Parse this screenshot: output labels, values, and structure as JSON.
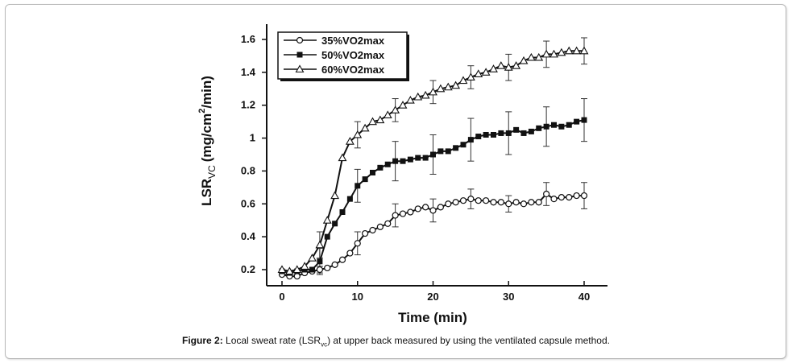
{
  "chart_data": {
    "type": "line",
    "title": "",
    "xlabel": "Time (min)",
    "ylabel_main": "LSR",
    "ylabel_sub": "VC",
    "ylabel_unit_pre": "(mg/cm",
    "ylabel_unit_sup": "2",
    "ylabel_unit_post": "/min)",
    "xlim": [
      0,
      40
    ],
    "ylim": [
      0.2,
      1.6
    ],
    "x_ticks": [
      0,
      10,
      20,
      30,
      40
    ],
    "x_tick_labels": [
      "0",
      "10",
      "20",
      "30",
      "40"
    ],
    "y_ticks": [
      0.2,
      0.4,
      0.6,
      0.8,
      1.0,
      1.2,
      1.4,
      1.6
    ],
    "y_tick_labels": [
      "0.2",
      "0.4",
      "0.6",
      "0.8",
      "1",
      "1.2",
      "1.4",
      "1.6"
    ],
    "grid": false,
    "legend_position": "top-left",
    "x": [
      0,
      1,
      2,
      3,
      4,
      5,
      6,
      7,
      8,
      9,
      10,
      11,
      12,
      13,
      14,
      15,
      16,
      17,
      18,
      19,
      20,
      21,
      22,
      23,
      24,
      25,
      26,
      27,
      28,
      29,
      30,
      31,
      32,
      33,
      34,
      35,
      36,
      37,
      38,
      39,
      40
    ],
    "series": [
      {
        "name": "35%VO2max",
        "marker": "open-circle",
        "values": [
          0.17,
          0.16,
          0.16,
          0.18,
          0.19,
          0.2,
          0.21,
          0.23,
          0.26,
          0.3,
          0.36,
          0.42,
          0.44,
          0.46,
          0.48,
          0.53,
          0.54,
          0.55,
          0.57,
          0.58,
          0.56,
          0.58,
          0.6,
          0.61,
          0.62,
          0.63,
          0.62,
          0.62,
          0.61,
          0.61,
          0.6,
          0.61,
          0.6,
          0.61,
          0.61,
          0.66,
          0.63,
          0.64,
          0.64,
          0.65,
          0.65
        ],
        "error_x": [
          5,
          10,
          15,
          20,
          25,
          30,
          35,
          40
        ],
        "error": [
          0.02,
          0.07,
          0.07,
          0.07,
          0.06,
          0.05,
          0.07,
          0.08
        ]
      },
      {
        "name": "50%VO2max",
        "marker": "filled-square",
        "values": [
          0.19,
          0.18,
          0.19,
          0.2,
          0.2,
          0.25,
          0.4,
          0.48,
          0.55,
          0.63,
          0.71,
          0.75,
          0.79,
          0.82,
          0.84,
          0.86,
          0.86,
          0.87,
          0.88,
          0.88,
          0.9,
          0.92,
          0.92,
          0.94,
          0.96,
          0.99,
          1.01,
          1.02,
          1.02,
          1.03,
          1.03,
          1.05,
          1.03,
          1.04,
          1.06,
          1.07,
          1.08,
          1.07,
          1.08,
          1.1,
          1.11
        ],
        "error_x": [
          5,
          10,
          15,
          20,
          25,
          30,
          35,
          40
        ],
        "error": [
          0.08,
          0.1,
          0.12,
          0.12,
          0.13,
          0.13,
          0.12,
          0.13
        ]
      },
      {
        "name": "60%VO2max",
        "marker": "open-triangle",
        "values": [
          0.2,
          0.19,
          0.2,
          0.22,
          0.27,
          0.35,
          0.5,
          0.65,
          0.88,
          0.98,
          1.02,
          1.06,
          1.1,
          1.11,
          1.14,
          1.17,
          1.2,
          1.23,
          1.25,
          1.26,
          1.28,
          1.3,
          1.31,
          1.32,
          1.35,
          1.37,
          1.39,
          1.4,
          1.42,
          1.44,
          1.43,
          1.44,
          1.47,
          1.49,
          1.49,
          1.51,
          1.51,
          1.52,
          1.53,
          1.53,
          1.53
        ],
        "error_x": [
          5,
          10,
          15,
          20,
          25,
          30,
          35,
          40
        ],
        "error": [
          0.08,
          0.08,
          0.07,
          0.07,
          0.07,
          0.08,
          0.08,
          0.08
        ]
      }
    ]
  },
  "caption": {
    "label": "Figure 2:",
    "text_before": " Local sweat rate (LSR",
    "text_sub": "vc",
    "text_after": ") at upper back measured by using the ventilated capsule method."
  }
}
